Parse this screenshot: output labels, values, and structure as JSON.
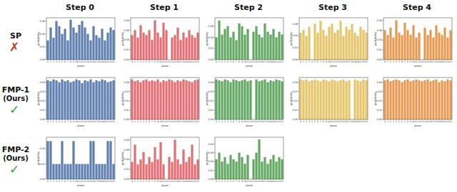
{
  "chart_data": [
    {
      "type": "bar",
      "title": "Step 0",
      "row_label": "SP",
      "row_mark": "✗",
      "color": "#5f7fae",
      "x_label": "place",
      "y_label": "probability",
      "categories": [
        "0",
        "1",
        "2",
        "3",
        "4",
        "5",
        "6",
        "7",
        "8",
        "9",
        "10",
        "11",
        "12",
        "13",
        "14",
        "15",
        "16",
        "17",
        "18",
        "19",
        "20",
        "21",
        "22",
        "23"
      ],
      "values": [
        0.03,
        0.05,
        0.034,
        0.06,
        0.052,
        0.04,
        0.048,
        0.03,
        0.062,
        0.05,
        0.042,
        0.054,
        0.06,
        0.05,
        0.04,
        0.03,
        0.052,
        0.038,
        0.034,
        0.048,
        0.03,
        0.042,
        0.05,
        0.046
      ],
      "ylim": [
        0,
        0.065
      ],
      "yticks": [
        {
          "value": 0,
          "label": "0.00"
        },
        {
          "value": 0.02,
          "label": "0.02"
        },
        {
          "value": 0.04,
          "label": "0.04"
        },
        {
          "value": 0.06,
          "label": "0.06"
        }
      ]
    },
    {
      "type": "bar",
      "title": "Step 1",
      "color": "#e06f72",
      "x_label": "place",
      "y_label": "probability",
      "categories": [
        "0",
        "1",
        "2",
        "3",
        "4",
        "5",
        "6",
        "7",
        "8",
        "9",
        "10",
        "11",
        "12",
        "13",
        "14",
        "15",
        "16",
        "17",
        "18",
        "19",
        "20",
        "21",
        "22",
        "23"
      ],
      "values": [
        0.05,
        0.06,
        0.045,
        0.07,
        0.055,
        0.05,
        0.06,
        0.04,
        0.08,
        0.055,
        0.045,
        0.075,
        0.06,
        0,
        0.045,
        0.05,
        0.065,
        0.04,
        0.055,
        0.045,
        0.06,
        0.05,
        0.045,
        0.055
      ],
      "ylim": [
        0,
        0.085
      ],
      "yticks": [
        {
          "value": 0,
          "label": "0.00"
        },
        {
          "value": 0.02,
          "label": "0.02"
        },
        {
          "value": 0.04,
          "label": "0.04"
        },
        {
          "value": 0.06,
          "label": "0.06"
        },
        {
          "value": 0.08,
          "label": "0.08"
        }
      ]
    },
    {
      "type": "bar",
      "title": "Step 2",
      "color": "#62a862",
      "x_label": "place",
      "y_label": "probability",
      "categories": [
        "0",
        "1",
        "2",
        "3",
        "4",
        "5",
        "6",
        "7",
        "8",
        "9",
        "10",
        "11",
        "12",
        "13",
        "14",
        "15",
        "16",
        "17",
        "18",
        "19",
        "20",
        "21",
        "22",
        "23"
      ],
      "values": [
        0.04,
        0.07,
        0.045,
        0.055,
        0.06,
        0.04,
        0.05,
        0.035,
        0.065,
        0.06,
        0.045,
        0.055,
        0,
        0.05,
        0.06,
        0.045,
        0.04,
        0.065,
        0.05,
        0.045,
        0.055,
        0.04,
        0.05,
        0.045
      ],
      "ylim": [
        0,
        0.075
      ],
      "yticks": [
        {
          "value": 0,
          "label": "0.00"
        },
        {
          "value": 0.02,
          "label": "0.02"
        },
        {
          "value": 0.04,
          "label": "0.04"
        },
        {
          "value": 0.06,
          "label": "0.06"
        }
      ]
    },
    {
      "type": "bar",
      "title": "Step 3",
      "color": "#e5c66a",
      "x_label": "place",
      "y_label": "probability",
      "categories": [
        "0",
        "1",
        "2",
        "3",
        "4",
        "5",
        "6",
        "7",
        "8",
        "9",
        "10",
        "11",
        "12",
        "13",
        "14",
        "15",
        "16",
        "17",
        "18",
        "19",
        "20",
        "21",
        "22",
        "23"
      ],
      "values": [
        0.045,
        0.05,
        0.04,
        0.055,
        0,
        0.06,
        0.045,
        0.065,
        0.05,
        0.04,
        0.055,
        0.06,
        0.045,
        0.05,
        0.065,
        0.04,
        0.055,
        0.05,
        0.06,
        0.045,
        0.04,
        0.055,
        0.05,
        0.045
      ],
      "ylim": [
        0,
        0.07
      ],
      "yticks": [
        {
          "value": 0,
          "label": "0.00"
        },
        {
          "value": 0.02,
          "label": "0.02"
        },
        {
          "value": 0.04,
          "label": "0.04"
        },
        {
          "value": 0.06,
          "label": "0.06"
        }
      ]
    },
    {
      "type": "bar",
      "title": "Step 4",
      "color": "#e49a52",
      "x_label": "place",
      "y_label": "probability",
      "categories": [
        "0",
        "1",
        "2",
        "3",
        "4",
        "5",
        "6",
        "7",
        "8",
        "9",
        "10",
        "11",
        "12",
        "13",
        "14",
        "15",
        "16",
        "17",
        "18",
        "19",
        "20",
        "21",
        "22",
        "23"
      ],
      "values": [
        0.06,
        0.05,
        0.065,
        0.045,
        0.08,
        0.055,
        0.05,
        0.075,
        0.06,
        0.05,
        0.07,
        0.045,
        0.055,
        0,
        0.065,
        0.05,
        0.06,
        0.045,
        0.07,
        0.055,
        0.05,
        0.065,
        0.045,
        0.06
      ],
      "ylim": [
        0,
        0.085
      ],
      "yticks": [
        {
          "value": 0,
          "label": "0.00"
        },
        {
          "value": 0.02,
          "label": "0.02"
        },
        {
          "value": 0.04,
          "label": "0.04"
        },
        {
          "value": 0.06,
          "label": "0.06"
        },
        {
          "value": 0.08,
          "label": "0.08"
        }
      ]
    },
    {
      "type": "bar",
      "row_label": "FMP-1",
      "row_sublabel": "(Ours)",
      "row_mark": "✓",
      "color": "#5f7fae",
      "x_label": "place",
      "y_label": "probability",
      "categories": [
        "0",
        "1",
        "2",
        "3",
        "4",
        "5",
        "6",
        "7",
        "8",
        "9",
        "10",
        "11",
        "12",
        "13",
        "14",
        "15",
        "16",
        "17",
        "18",
        "19",
        "20",
        "21",
        "22",
        "23"
      ],
      "values": [
        0.042,
        0.041,
        0.043,
        0.042,
        0.04,
        0.043,
        0.041,
        0.042,
        0.04,
        0.041,
        0.043,
        0.042,
        0.039,
        0.042,
        0.041,
        0.043,
        0.04,
        0.042,
        0.041,
        0.043,
        0.042,
        0.04,
        0.041,
        0.042
      ],
      "ylim": [
        0,
        0.045
      ],
      "yticks": [
        {
          "value": 0,
          "label": "0.00"
        },
        {
          "value": 0.01,
          "label": "0.01"
        },
        {
          "value": 0.02,
          "label": "0.02"
        },
        {
          "value": 0.03,
          "label": "0.03"
        },
        {
          "value": 0.04,
          "label": "0.04"
        }
      ]
    },
    {
      "type": "bar",
      "color": "#e06f72",
      "x_label": "place",
      "y_label": "probability",
      "categories": [
        "0",
        "1",
        "2",
        "3",
        "4",
        "5",
        "6",
        "7",
        "8",
        "9",
        "10",
        "11",
        "12",
        "13",
        "14",
        "15",
        "16",
        "17",
        "18",
        "19",
        "20",
        "21",
        "22",
        "23"
      ],
      "values": [
        0.043,
        0.041,
        0.042,
        0.04,
        0.042,
        0.043,
        0.041,
        0.042,
        0.041,
        0.043,
        0.04,
        0.042,
        0.041,
        0.043,
        0.042,
        0.04,
        0.042,
        0.041,
        0.043,
        0.042,
        0.041,
        0.04,
        0.042,
        0.043
      ],
      "ylim": [
        0,
        0.045
      ],
      "yticks": [
        {
          "value": 0,
          "label": "0.00"
        },
        {
          "value": 0.01,
          "label": "0.01"
        },
        {
          "value": 0.02,
          "label": "0.02"
        },
        {
          "value": 0.03,
          "label": "0.03"
        },
        {
          "value": 0.04,
          "label": "0.04"
        }
      ]
    },
    {
      "type": "bar",
      "color": "#62a862",
      "x_label": "place",
      "y_label": "probability",
      "categories": [
        "0",
        "1",
        "2",
        "3",
        "4",
        "5",
        "6",
        "7",
        "8",
        "9",
        "10",
        "11",
        "12",
        "13",
        "14",
        "15",
        "16",
        "17",
        "18",
        "19",
        "20",
        "21",
        "22",
        "23"
      ],
      "values": [
        0.043,
        0.042,
        0.041,
        0.043,
        0.042,
        0.04,
        0.043,
        0.042,
        0.041,
        0.042,
        0.043,
        0.041,
        0.042,
        0,
        0.043,
        0.041,
        0.042,
        0.043,
        0.04,
        0.042,
        0.041,
        0.043,
        0.042,
        0.041
      ],
      "ylim": [
        0,
        0.045
      ],
      "yticks": [
        {
          "value": 0,
          "label": "0.00"
        },
        {
          "value": 0.01,
          "label": "0.01"
        },
        {
          "value": 0.02,
          "label": "0.02"
        },
        {
          "value": 0.03,
          "label": "0.03"
        },
        {
          "value": 0.04,
          "label": "0.04"
        }
      ]
    },
    {
      "type": "bar",
      "color": "#e5c66a",
      "x_label": "place",
      "y_label": "probability",
      "categories": [
        "0",
        "1",
        "2",
        "3",
        "4",
        "5",
        "6",
        "7",
        "8",
        "9",
        "10",
        "11",
        "12",
        "13",
        "14",
        "15",
        "16",
        "17",
        "18",
        "19",
        "20",
        "21",
        "22",
        "23"
      ],
      "values": [
        0.043,
        0.042,
        0.043,
        0.041,
        0.042,
        0.043,
        0.042,
        0.041,
        0.043,
        0.042,
        0.041,
        0.043,
        0.042,
        0.041,
        0.042,
        0.043,
        0.041,
        0.042,
        0,
        0.043,
        0.042,
        0.041,
        0.043,
        0.042
      ],
      "ylim": [
        0,
        0.045
      ],
      "yticks": [
        {
          "value": 0,
          "label": "0.00"
        },
        {
          "value": 0.01,
          "label": "0.01"
        },
        {
          "value": 0.02,
          "label": "0.02"
        },
        {
          "value": 0.03,
          "label": "0.03"
        },
        {
          "value": 0.04,
          "label": "0.04"
        }
      ]
    },
    {
      "type": "bar",
      "color": "#e49a52",
      "x_label": "place",
      "y_label": "probability",
      "categories": [
        "0",
        "1",
        "2",
        "3",
        "4",
        "5",
        "6",
        "7",
        "8",
        "9",
        "10",
        "11",
        "12",
        "13",
        "14",
        "15",
        "16",
        "17",
        "18",
        "19",
        "20",
        "21",
        "22",
        "23"
      ],
      "values": [
        0.042,
        0.043,
        0.041,
        0.042,
        0.043,
        0.042,
        0.04,
        0.042,
        0.043,
        0.041,
        0.042,
        0.043,
        0.042,
        0.041,
        0.042,
        0.043,
        0.041,
        0.042,
        0.043,
        0.04,
        0.042,
        0.041,
        0.043,
        0.042
      ],
      "ylim": [
        0,
        0.045
      ],
      "yticks": [
        {
          "value": 0,
          "label": "0.00"
        },
        {
          "value": 0.01,
          "label": "0.01"
        },
        {
          "value": 0.02,
          "label": "0.02"
        },
        {
          "value": 0.03,
          "label": "0.03"
        },
        {
          "value": 0.04,
          "label": "0.04"
        }
      ]
    },
    {
      "type": "bar",
      "row_label": "FMP-2",
      "row_sublabel": "(Ours)",
      "row_mark": "✓",
      "color": "#5f7fae",
      "x_label": "place",
      "y_label": "probability",
      "categories": [
        "0",
        "1",
        "2",
        "3",
        "4",
        "5",
        "6",
        "7",
        "8",
        "9",
        "10",
        "11",
        "12",
        "13",
        "14",
        "15",
        "16",
        "17",
        "18",
        "19",
        "20",
        "21",
        "22",
        "23"
      ],
      "values": [
        0.05,
        0.05,
        0.02,
        0.02,
        0.02,
        0.05,
        0.02,
        0.02,
        0.02,
        0.05,
        0.02,
        0.02,
        0.02,
        0.02,
        0.02,
        0.05,
        0.05,
        0.02,
        0.02,
        0.02,
        0.02,
        0.05,
        0.05,
        0.02
      ],
      "ylim": [
        0,
        0.055
      ],
      "yticks": [
        {
          "value": 0,
          "label": "0.00"
        },
        {
          "value": 0.02,
          "label": "0.02"
        },
        {
          "value": 0.04,
          "label": "0.04"
        }
      ]
    },
    {
      "type": "bar",
      "color": "#e06f72",
      "x_label": "place",
      "y_label": "probability",
      "categories": [
        "0",
        "1",
        "2",
        "3",
        "4",
        "5",
        "6",
        "7",
        "8",
        "9",
        "10",
        "11",
        "12",
        "13",
        "14",
        "15",
        "16",
        "17",
        "18",
        "19",
        "20",
        "21",
        "22",
        "23"
      ],
      "values": [
        0.035,
        0.07,
        0.03,
        0.04,
        0.055,
        0.03,
        0.045,
        0.035,
        0.065,
        0.04,
        0.075,
        0.03,
        0,
        0.045,
        0.035,
        0.08,
        0.04,
        0.03,
        0.06,
        0.035,
        0.045,
        0.07,
        0.03,
        0.04
      ],
      "ylim": [
        0,
        0.085
      ],
      "yticks": [
        {
          "value": 0,
          "label": "0.00"
        },
        {
          "value": 0.02,
          "label": "0.02"
        },
        {
          "value": 0.04,
          "label": "0.04"
        },
        {
          "value": 0.06,
          "label": "0.06"
        },
        {
          "value": 0.08,
          "label": "0.08"
        }
      ]
    },
    {
      "type": "bar",
      "color": "#62a862",
      "x_label": "place",
      "y_label": "probability",
      "categories": [
        "0",
        "1",
        "2",
        "3",
        "4",
        "5",
        "6",
        "7",
        "8",
        "9",
        "10",
        "11",
        "12",
        "13",
        "14",
        "15",
        "16",
        "17",
        "18",
        "19",
        "20",
        "21",
        "22",
        "23"
      ],
      "values": [
        0.045,
        0.06,
        0.04,
        0.05,
        0.035,
        0.055,
        0.045,
        0.04,
        0.06,
        0.05,
        0.035,
        0.055,
        0,
        0.045,
        0.06,
        0.09,
        0.04,
        0.05,
        0.035,
        0.045,
        0.055,
        0.04,
        0.05,
        0.045
      ],
      "ylim": [
        0,
        0.095
      ],
      "yticks": [
        {
          "value": 0,
          "label": "0.00"
        },
        {
          "value": 0.02,
          "label": "0.02"
        },
        {
          "value": 0.04,
          "label": "0.04"
        },
        {
          "value": 0.06,
          "label": "0.06"
        },
        {
          "value": 0.08,
          "label": "0.08"
        }
      ]
    }
  ]
}
